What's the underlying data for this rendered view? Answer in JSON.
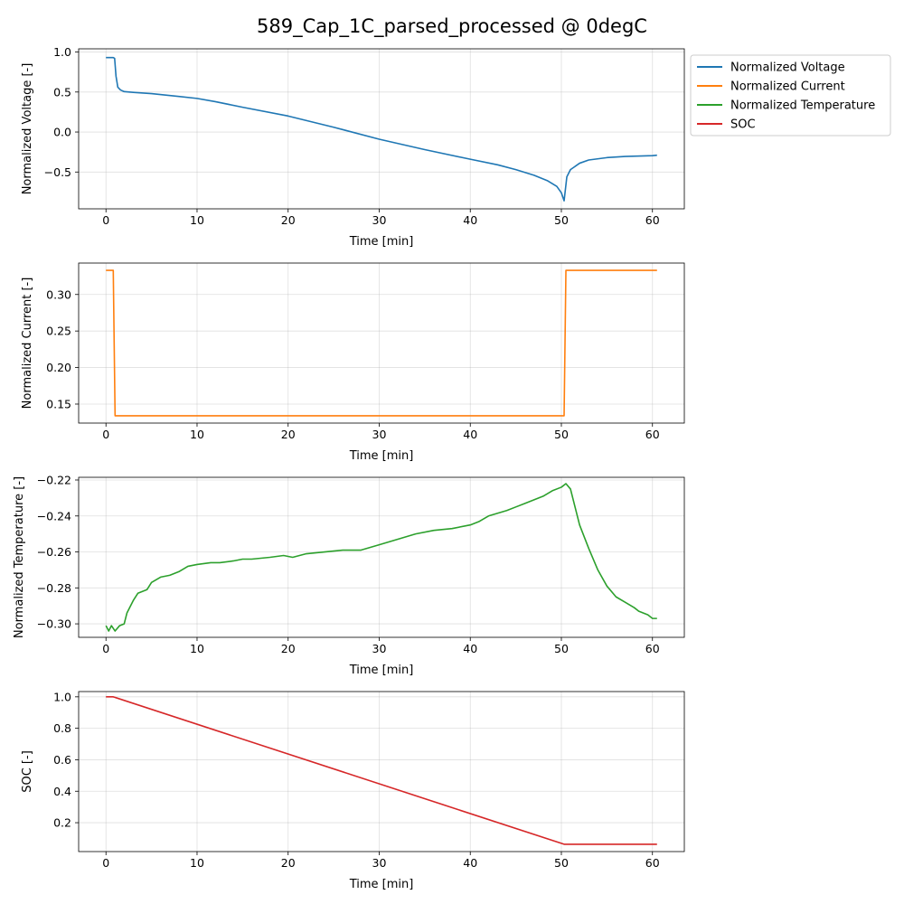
{
  "figure_title": "589_Cap_1C_parsed_processed @ 0degC",
  "legend": {
    "placement": "outside-right-top",
    "entries": [
      {
        "label": "Normalized Voltage",
        "color": "#1f77b4"
      },
      {
        "label": "Normalized Current",
        "color": "#ff7f0e"
      },
      {
        "label": "Normalized Temperature",
        "color": "#2ca02c"
      },
      {
        "label": "SOC",
        "color": "#d62728"
      }
    ]
  },
  "chart_data": [
    {
      "type": "line",
      "xlabel": "Time [min]",
      "ylabel": "Normalized Voltage [-]",
      "xlim": [
        -3.0,
        63.5
      ],
      "ylim": [
        -0.96,
        1.04
      ],
      "xticks": [
        0,
        10,
        20,
        30,
        40,
        50,
        60
      ],
      "yticks": [
        -0.5,
        0.0,
        0.5,
        1.0
      ],
      "ytick_labels": [
        "−0.5",
        "0.0",
        "0.5",
        "1.0"
      ],
      "grid": true,
      "series": [
        {
          "name": "Normalized Voltage",
          "color": "#1f77b4",
          "x": [
            0,
            0.8,
            0.95,
            1.1,
            1.3,
            1.6,
            2.0,
            3.0,
            5.0,
            8.0,
            10.0,
            12.0,
            15.0,
            20.0,
            25.0,
            30.0,
            35.0,
            40.0,
            43.0,
            45.0,
            47.0,
            48.5,
            49.5,
            50.0,
            50.3,
            50.6,
            51.0,
            52.0,
            53.0,
            55.0,
            57.0,
            60.0,
            60.5
          ],
          "y": [
            0.93,
            0.93,
            0.92,
            0.7,
            0.56,
            0.525,
            0.505,
            0.495,
            0.48,
            0.445,
            0.42,
            0.38,
            0.31,
            0.2,
            0.06,
            -0.09,
            -0.22,
            -0.34,
            -0.41,
            -0.47,
            -0.54,
            -0.61,
            -0.68,
            -0.76,
            -0.86,
            -0.56,
            -0.47,
            -0.39,
            -0.35,
            -0.32,
            -0.305,
            -0.295,
            -0.29
          ]
        }
      ]
    },
    {
      "type": "line",
      "xlabel": "Time [min]",
      "ylabel": "Normalized Current [-]",
      "xlim": [
        -3.0,
        63.5
      ],
      "ylim": [
        0.124,
        0.343
      ],
      "xticks": [
        0,
        10,
        20,
        30,
        40,
        50,
        60
      ],
      "yticks": [
        0.15,
        0.2,
        0.25,
        0.3
      ],
      "ytick_labels": [
        "0.15",
        "0.20",
        "0.25",
        "0.30"
      ],
      "grid": true,
      "series": [
        {
          "name": "Normalized Current",
          "color": "#ff7f0e",
          "x": [
            0,
            0.8,
            1.0,
            50.3,
            50.5,
            60.5
          ],
          "y": [
            0.333,
            0.333,
            0.134,
            0.134,
            0.333,
            0.333
          ]
        }
      ]
    },
    {
      "type": "line",
      "xlabel": "Time [min]",
      "ylabel": "Normalized Temperature [-]",
      "xlim": [
        -3.0,
        63.5
      ],
      "ylim": [
        -0.3075,
        -0.2185
      ],
      "xticks": [
        0,
        10,
        20,
        30,
        40,
        50,
        60
      ],
      "yticks": [
        -0.3,
        -0.28,
        -0.26,
        -0.24,
        -0.22
      ],
      "ytick_labels": [
        "−0.30",
        "−0.28",
        "−0.26",
        "−0.24",
        "−0.22"
      ],
      "grid": true,
      "series": [
        {
          "name": "Normalized Temperature",
          "color": "#2ca02c",
          "x": [
            0,
            0.3,
            0.6,
            1.0,
            1.5,
            2.0,
            2.3,
            3.0,
            3.5,
            4.5,
            5.0,
            6.0,
            7.0,
            8.0,
            9.0,
            10.0,
            11.5,
            12.5,
            14.0,
            15.0,
            16.0,
            18.0,
            19.5,
            20.5,
            22.0,
            24.0,
            26.0,
            28.0,
            30.0,
            32.0,
            34.0,
            36.0,
            38.0,
            40.0,
            41.0,
            42.0,
            44.0,
            45.0,
            46.0,
            47.0,
            48.0,
            49.0,
            50.0,
            50.5,
            51.0,
            51.5,
            52.0,
            53.0,
            54.0,
            55.0,
            56.0,
            57.0,
            58.0,
            58.5,
            59.0,
            59.5,
            60.0,
            60.5
          ],
          "y": [
            -0.301,
            -0.304,
            -0.301,
            -0.304,
            -0.301,
            -0.3,
            -0.294,
            -0.287,
            -0.283,
            -0.281,
            -0.277,
            -0.274,
            -0.273,
            -0.271,
            -0.268,
            -0.267,
            -0.266,
            -0.266,
            -0.265,
            -0.264,
            -0.264,
            -0.263,
            -0.262,
            -0.263,
            -0.261,
            -0.26,
            -0.259,
            -0.259,
            -0.256,
            -0.253,
            -0.25,
            -0.248,
            -0.247,
            -0.245,
            -0.243,
            -0.24,
            -0.237,
            -0.235,
            -0.233,
            -0.231,
            -0.229,
            -0.226,
            -0.224,
            -0.222,
            -0.225,
            -0.235,
            -0.245,
            -0.258,
            -0.27,
            -0.279,
            -0.285,
            -0.288,
            -0.291,
            -0.293,
            -0.294,
            -0.295,
            -0.297,
            -0.297
          ]
        }
      ]
    },
    {
      "type": "line",
      "xlabel": "Time [min]",
      "ylabel": "SOC [-]",
      "xlim": [
        -3.0,
        63.5
      ],
      "ylim": [
        0.0165,
        1.0335
      ],
      "xticks": [
        0,
        10,
        20,
        30,
        40,
        50,
        60
      ],
      "yticks": [
        0.2,
        0.4,
        0.6,
        0.8,
        1.0
      ],
      "ytick_labels": [
        "0.2",
        "0.4",
        "0.6",
        "0.8",
        "1.0"
      ],
      "grid": true,
      "series": [
        {
          "name": "SOC",
          "color": "#d62728",
          "x": [
            0,
            0.8,
            50.3,
            60.5
          ],
          "y": [
            1.0,
            1.0,
            0.063,
            0.063
          ]
        }
      ]
    }
  ]
}
